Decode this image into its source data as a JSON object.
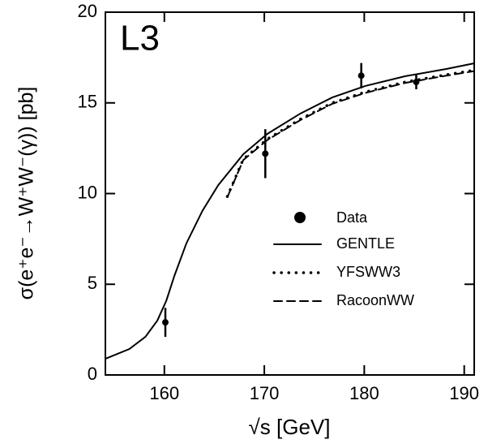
{
  "chart_data": {
    "type": "line",
    "title": "L3",
    "x_label": "√s   [GeV]",
    "y_label": "σ(e⁺e⁻→W⁺W⁻(γ))   [pb]",
    "xlim": [
      154.1,
      191.0
    ],
    "xticks": [
      160,
      170,
      180,
      190
    ],
    "ylim": [
      0,
      20
    ],
    "yticks": [
      0,
      5,
      10,
      15,
      20
    ],
    "points": {
      "name": "Data",
      "color": "#000000",
      "x": [
        160.1,
        170.1,
        179.7,
        185.2
      ],
      "values": [
        2.9,
        12.2,
        16.5,
        16.15
      ],
      "errors": [
        0.8,
        1.35,
        0.7,
        0.4
      ]
    },
    "series": [
      {
        "name": "GENTLE",
        "color": "#000000",
        "dash": "solid",
        "x": [
          154.1,
          156.5,
          158.1,
          159.3,
          160.2,
          161.0,
          162.2,
          163.8,
          165.4,
          167.9,
          170.3,
          173.6,
          176.8,
          180.1,
          184.1,
          188.2,
          191.0
        ],
        "values": [
          0.89,
          1.43,
          2.1,
          3.0,
          4.1,
          5.46,
          7.25,
          9.04,
          10.47,
          12.17,
          13.29,
          14.41,
          15.3,
          15.93,
          16.47,
          16.87,
          17.18
        ]
      },
      {
        "name": "YFSWW3",
        "color": "#000000",
        "dash": "dotted",
        "x": [
          166.3,
          167.9,
          170.3,
          173.6,
          176.8,
          180.1,
          184.1,
          188.2,
          191.0
        ],
        "values": [
          9.84,
          11.9,
          13.0,
          14.1,
          15.0,
          15.6,
          16.15,
          16.55,
          16.8
        ]
      },
      {
        "name": "RacoonWW",
        "color": "#000000",
        "dash": "dashed",
        "x": [
          166.3,
          167.9,
          170.3,
          173.6,
          176.8,
          180.1,
          184.1,
          188.2,
          191.0
        ],
        "values": [
          9.8,
          11.85,
          12.95,
          14.05,
          14.95,
          15.55,
          16.1,
          16.5,
          16.75
        ]
      }
    ]
  }
}
